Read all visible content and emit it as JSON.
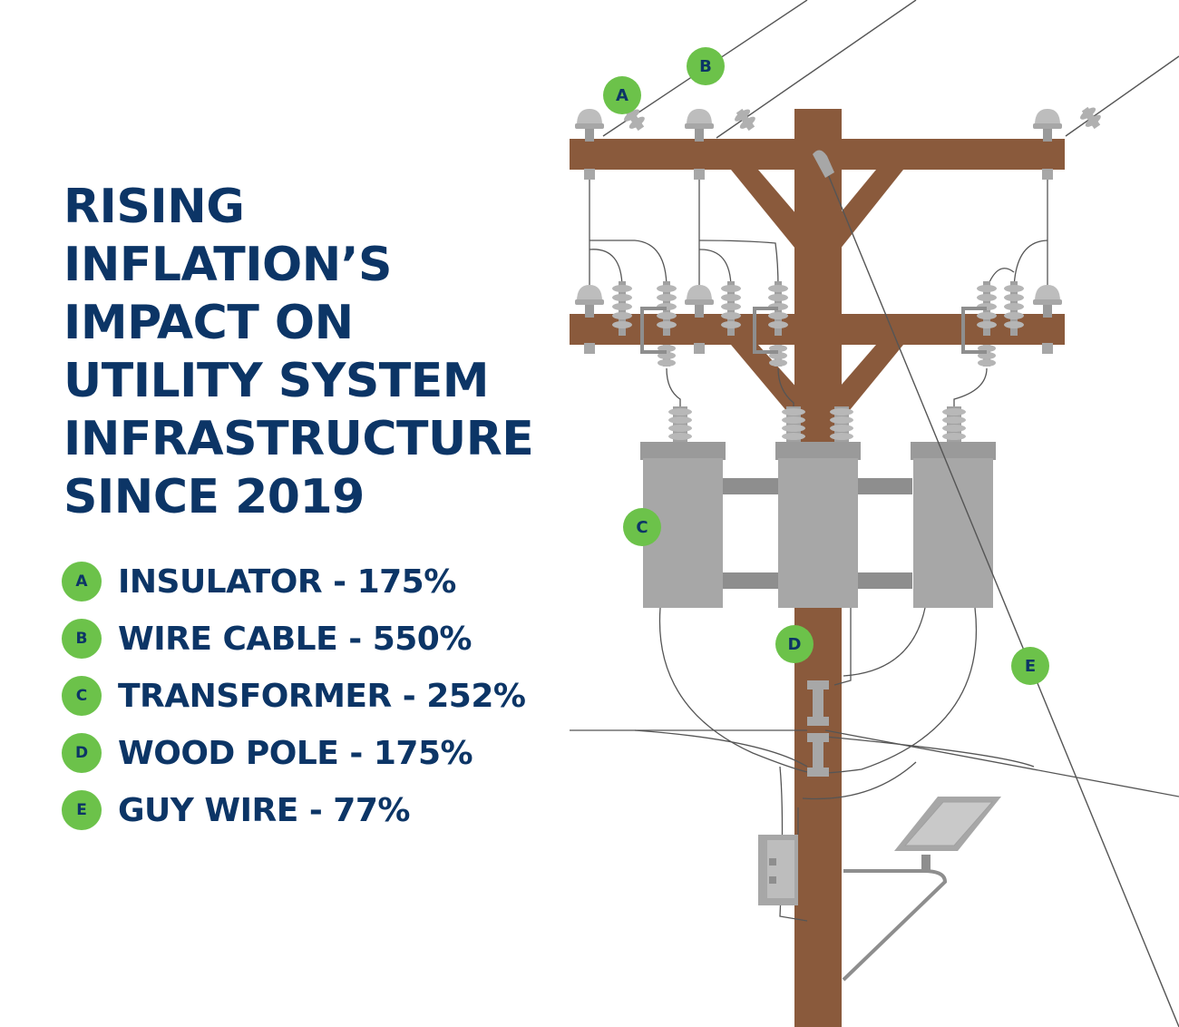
{
  "title_lines": [
    "RISING",
    "INFLATION’S",
    "IMPACT ON",
    "UTILITY SYSTEM",
    "INFRASTRUCTURE",
    "SINCE 2019"
  ],
  "legend": [
    {
      "key": "A",
      "label": "INSULATOR - 175%"
    },
    {
      "key": "B",
      "label": "WIRE CABLE - 550%"
    },
    {
      "key": "C",
      "label": "TRANSFORMER - 252%"
    },
    {
      "key": "D",
      "label": "WOOD POLE - 175%"
    },
    {
      "key": "E",
      "label": "GUY WIRE - 77%"
    }
  ],
  "markers": {
    "a": "A",
    "b": "B",
    "c": "C",
    "d": "D",
    "e": "E"
  },
  "colors": {
    "navy": "#0c3566",
    "green": "#6cc24a",
    "wood": "#8a5a3c",
    "metal": "#a7a7a7",
    "metal_dark": "#8e8e8e",
    "wire": "#555555"
  }
}
